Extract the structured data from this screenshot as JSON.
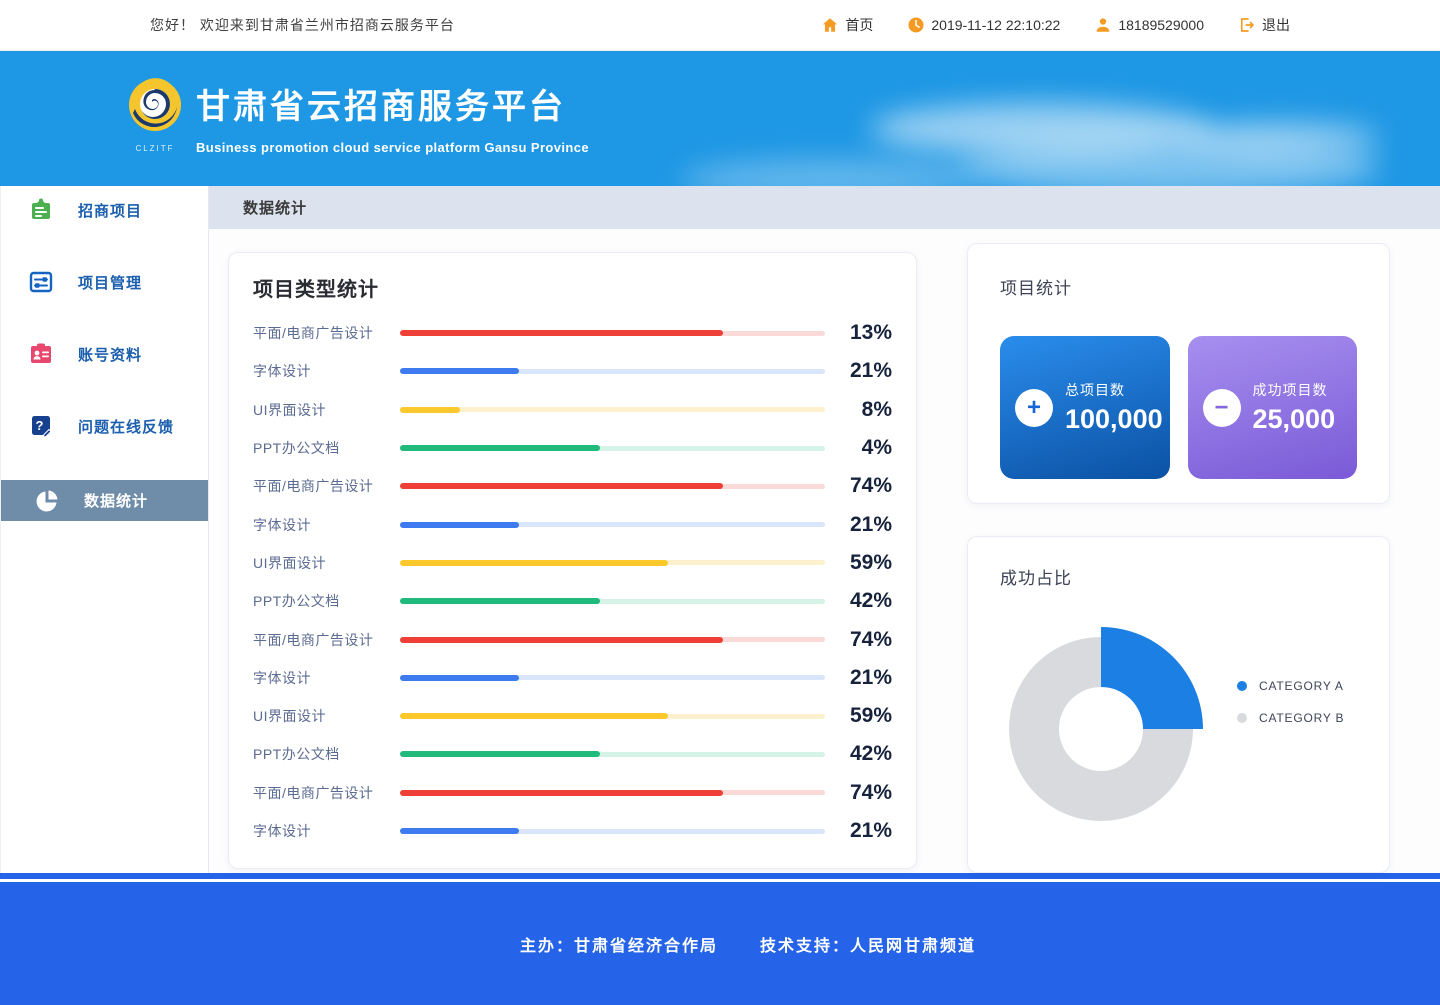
{
  "topbar": {
    "greeting": "您好！ 欢迎来到甘肃省兰州市招商云服务平台",
    "home_label": "首页",
    "datetime": "2019-11-12 22:10:22",
    "phone": "18189529000",
    "logout_label": "退出",
    "accent_color": "#f59b23"
  },
  "header": {
    "title": "甘肃省云招商服务平台",
    "subtitle": "Business promotion cloud service platform  Gansu Province",
    "logo_caption": "CLZITF",
    "bg_color": "#1e97e4"
  },
  "sidebar": {
    "items": [
      {
        "label": "招商项目",
        "icon": "clipboard-icon",
        "active": false
      },
      {
        "label": "项目管理",
        "icon": "sliders-icon",
        "active": false
      },
      {
        "label": "账号资料",
        "icon": "id-card-icon",
        "active": false
      },
      {
        "label": "问题在线反馈",
        "icon": "question-feedback-icon",
        "active": false
      },
      {
        "label": "数据统计",
        "icon": "pie-chart-icon",
        "active": true
      }
    ]
  },
  "breadcrumb": "数据统计",
  "main": {
    "bar_card": {
      "title": "项目类型统计",
      "rows": [
        {
          "label": "平面/电商广告设计",
          "value_label": "13%",
          "fill_pct": 76,
          "color": "red"
        },
        {
          "label": "字体设计",
          "value_label": "21%",
          "fill_pct": 28,
          "color": "blue"
        },
        {
          "label": "UI界面设计",
          "value_label": "8%",
          "fill_pct": 14,
          "color": "yellow"
        },
        {
          "label": "PPT办公文档",
          "value_label": "4%",
          "fill_pct": 47,
          "color": "green"
        },
        {
          "label": "平面/电商广告设计",
          "value_label": "74%",
          "fill_pct": 76,
          "color": "red"
        },
        {
          "label": "字体设计",
          "value_label": "21%",
          "fill_pct": 28,
          "color": "blue"
        },
        {
          "label": "UI界面设计",
          "value_label": "59%",
          "fill_pct": 63,
          "color": "yellow"
        },
        {
          "label": "PPT办公文档",
          "value_label": "42%",
          "fill_pct": 47,
          "color": "green"
        },
        {
          "label": "平面/电商广告设计",
          "value_label": "74%",
          "fill_pct": 76,
          "color": "red"
        },
        {
          "label": "字体设计",
          "value_label": "21%",
          "fill_pct": 28,
          "color": "blue"
        },
        {
          "label": "UI界面设计",
          "value_label": "59%",
          "fill_pct": 63,
          "color": "yellow"
        },
        {
          "label": "PPT办公文档",
          "value_label": "42%",
          "fill_pct": 47,
          "color": "green"
        },
        {
          "label": "平面/电商广告设计",
          "value_label": "74%",
          "fill_pct": 76,
          "color": "red"
        },
        {
          "label": "字体设计",
          "value_label": "21%",
          "fill_pct": 28,
          "color": "blue"
        }
      ]
    },
    "stats_card": {
      "title": "项目统计",
      "cards": [
        {
          "label": "总项目数",
          "value": "100,000",
          "sign": "+",
          "color": "#1565d8"
        },
        {
          "label": "成功项目数",
          "value": "25,000",
          "sign": "−",
          "color": "#8465dd"
        }
      ]
    },
    "donut_card": {
      "title": "成功占比",
      "legend": [
        {
          "label": "CATEGORY A",
          "color": "#1b7fe3"
        },
        {
          "label": "CATEGORY B",
          "color": "#d8dade"
        }
      ]
    }
  },
  "footer": {
    "host": "主办：甘肃省经济合作局",
    "support": "技术支持：人民网甘肃频道"
  },
  "chart_data": [
    {
      "type": "bar",
      "title": "项目类型统计",
      "orientation": "horizontal",
      "unit": "%",
      "categories": [
        "平面/电商广告设计",
        "字体设计",
        "UI界面设计",
        "PPT办公文档",
        "平面/电商广告设计",
        "字体设计",
        "UI界面设计",
        "PPT办公文档",
        "平面/电商广告设计",
        "字体设计",
        "UI界面设计",
        "PPT办公文档",
        "平面/电商广告设计",
        "字体设计"
      ],
      "values": [
        13,
        21,
        8,
        4,
        74,
        21,
        59,
        42,
        74,
        21,
        59,
        42,
        74,
        21
      ],
      "bar_colors": [
        "#ee4037",
        "#3e7bf0",
        "#fcc92d",
        "#1fba7c",
        "#ee4037",
        "#3e7bf0",
        "#fcc92d",
        "#1fba7c",
        "#ee4037",
        "#3e7bf0",
        "#fcc92d",
        "#1fba7c",
        "#ee4037",
        "#3e7bf0"
      ],
      "visual_fill_fractions_pct": [
        76,
        28,
        14,
        47,
        76,
        28,
        63,
        47,
        76,
        28,
        63,
        47,
        76,
        28
      ],
      "grid": false,
      "legend_position": "none"
    },
    {
      "type": "pie",
      "title": "成功占比",
      "donut": true,
      "labels": [
        "CATEGORY A",
        "CATEGORY B"
      ],
      "values": [
        25,
        75
      ],
      "colors": [
        "#1b7fe3",
        "#d8dade"
      ],
      "legend_position": "right",
      "exploded_slice": "CATEGORY A"
    },
    {
      "type": "table",
      "title": "项目统计",
      "categories": [
        "总项目数",
        "成功项目数"
      ],
      "values": [
        100000,
        25000
      ]
    }
  ]
}
